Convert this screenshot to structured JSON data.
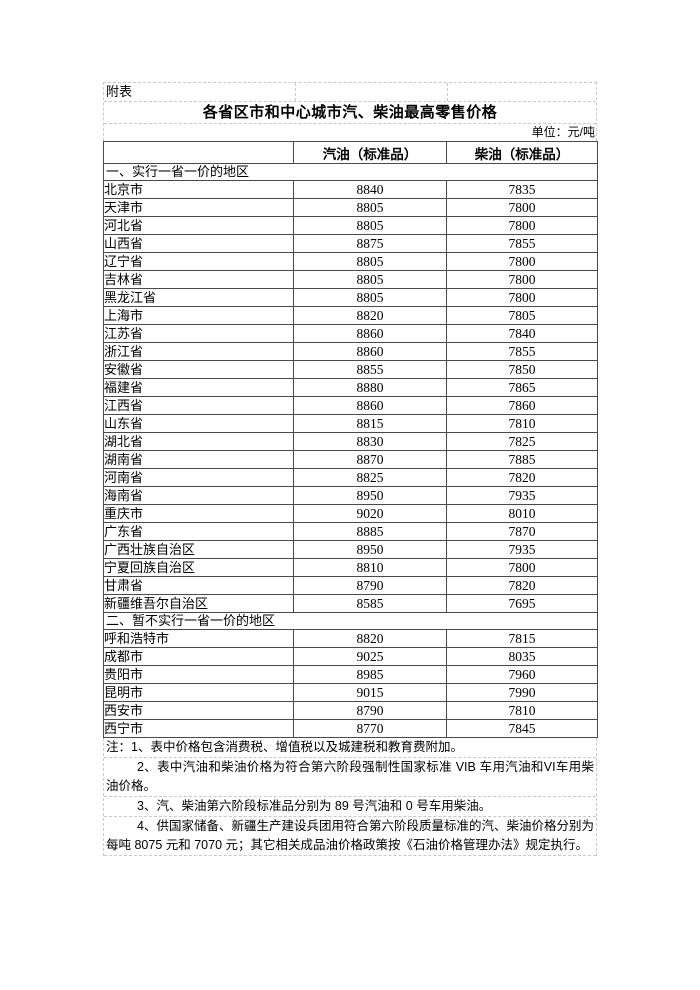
{
  "page": {
    "attachment_label": "附表",
    "title": "各省区市和中心城市汽、柴油最高零售价格",
    "unit_label": "单位：元/吨"
  },
  "table": {
    "columns": [
      "",
      "汽油（标准品）",
      "柴油（标准品）"
    ],
    "sections": [
      {
        "header": "一、实行一省一价的地区",
        "rows": [
          {
            "region": "北京市",
            "gasoline": "8840",
            "diesel": "7835"
          },
          {
            "region": "天津市",
            "gasoline": "8805",
            "diesel": "7800"
          },
          {
            "region": "河北省",
            "gasoline": "8805",
            "diesel": "7800"
          },
          {
            "region": "山西省",
            "gasoline": "8875",
            "diesel": "7855"
          },
          {
            "region": "辽宁省",
            "gasoline": "8805",
            "diesel": "7800"
          },
          {
            "region": "吉林省",
            "gasoline": "8805",
            "diesel": "7800"
          },
          {
            "region": "黑龙江省",
            "gasoline": "8805",
            "diesel": "7800"
          },
          {
            "region": "上海市",
            "gasoline": "8820",
            "diesel": "7805"
          },
          {
            "region": "江苏省",
            "gasoline": "8860",
            "diesel": "7840"
          },
          {
            "region": "浙江省",
            "gasoline": "8860",
            "diesel": "7855"
          },
          {
            "region": "安徽省",
            "gasoline": "8855",
            "diesel": "7850"
          },
          {
            "region": "福建省",
            "gasoline": "8880",
            "diesel": "7865"
          },
          {
            "region": "江西省",
            "gasoline": "8860",
            "diesel": "7860"
          },
          {
            "region": "山东省",
            "gasoline": "8815",
            "diesel": "7810"
          },
          {
            "region": "湖北省",
            "gasoline": "8830",
            "diesel": "7825"
          },
          {
            "region": "湖南省",
            "gasoline": "8870",
            "diesel": "7885"
          },
          {
            "region": "河南省",
            "gasoline": "8825",
            "diesel": "7820"
          },
          {
            "region": "海南省",
            "gasoline": "8950",
            "diesel": "7935"
          },
          {
            "region": "重庆市",
            "gasoline": "9020",
            "diesel": "8010"
          },
          {
            "region": "广东省",
            "gasoline": "8885",
            "diesel": "7870"
          },
          {
            "region": "广西壮族自治区",
            "gasoline": "8950",
            "diesel": "7935"
          },
          {
            "region": "宁夏回族自治区",
            "gasoline": "8810",
            "diesel": "7800"
          },
          {
            "region": "甘肃省",
            "gasoline": "8790",
            "diesel": "7820"
          },
          {
            "region": "新疆维吾尔自治区",
            "gasoline": "8585",
            "diesel": "7695"
          }
        ]
      },
      {
        "header": "二、暂不实行一省一价的地区",
        "rows": [
          {
            "region": "呼和浩特市",
            "gasoline": "8820",
            "diesel": "7815"
          },
          {
            "region": "成都市",
            "gasoline": "9025",
            "diesel": "8035"
          },
          {
            "region": "贵阳市",
            "gasoline": "8985",
            "diesel": "7960"
          },
          {
            "region": "昆明市",
            "gasoline": "9015",
            "diesel": "7990"
          },
          {
            "region": "西安市",
            "gasoline": "8790",
            "diesel": "7810"
          },
          {
            "region": "西宁市",
            "gasoline": "8770",
            "diesel": "7845"
          }
        ]
      }
    ]
  },
  "notes": {
    "items": [
      "注：1、表中价格包含消费税、增值税以及城建税和教育费附加。",
      "2、表中汽油和柴油价格为符合第六阶段强制性国家标准 VIB 车用汽油和VI车用柴油价格。",
      "3、汽、柴油第六阶段标准品分别为 89 号汽油和 0 号车用柴油。",
      "4、供国家储备、新疆生产建设兵团用符合第六阶段质量标准的汽、柴油价格分别为每吨 8075 元和 7070 元；其它相关成品油价格政策按《石油价格管理办法》规定执行。"
    ]
  }
}
